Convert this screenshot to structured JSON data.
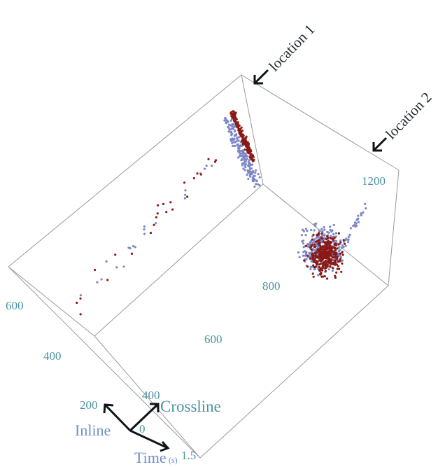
{
  "chart_data": {
    "type": "scatter",
    "subtype": "3d-point-cloud",
    "title": "",
    "axes": {
      "inline": {
        "label": "Inline",
        "ticks": [
          "0",
          "200",
          "400",
          "600"
        ]
      },
      "crossline": {
        "label": "Crossline",
        "ticks": [
          "400",
          "600",
          "800",
          "1200"
        ]
      },
      "time": {
        "label": "Time",
        "unit": "(s)",
        "ticks": [
          "1.5"
        ]
      }
    },
    "annotations": [
      {
        "text": "location 1"
      },
      {
        "text": "location 2"
      }
    ],
    "series": [
      {
        "color": "#7d86c9"
      },
      {
        "color": "#8b1a14"
      }
    ]
  }
}
